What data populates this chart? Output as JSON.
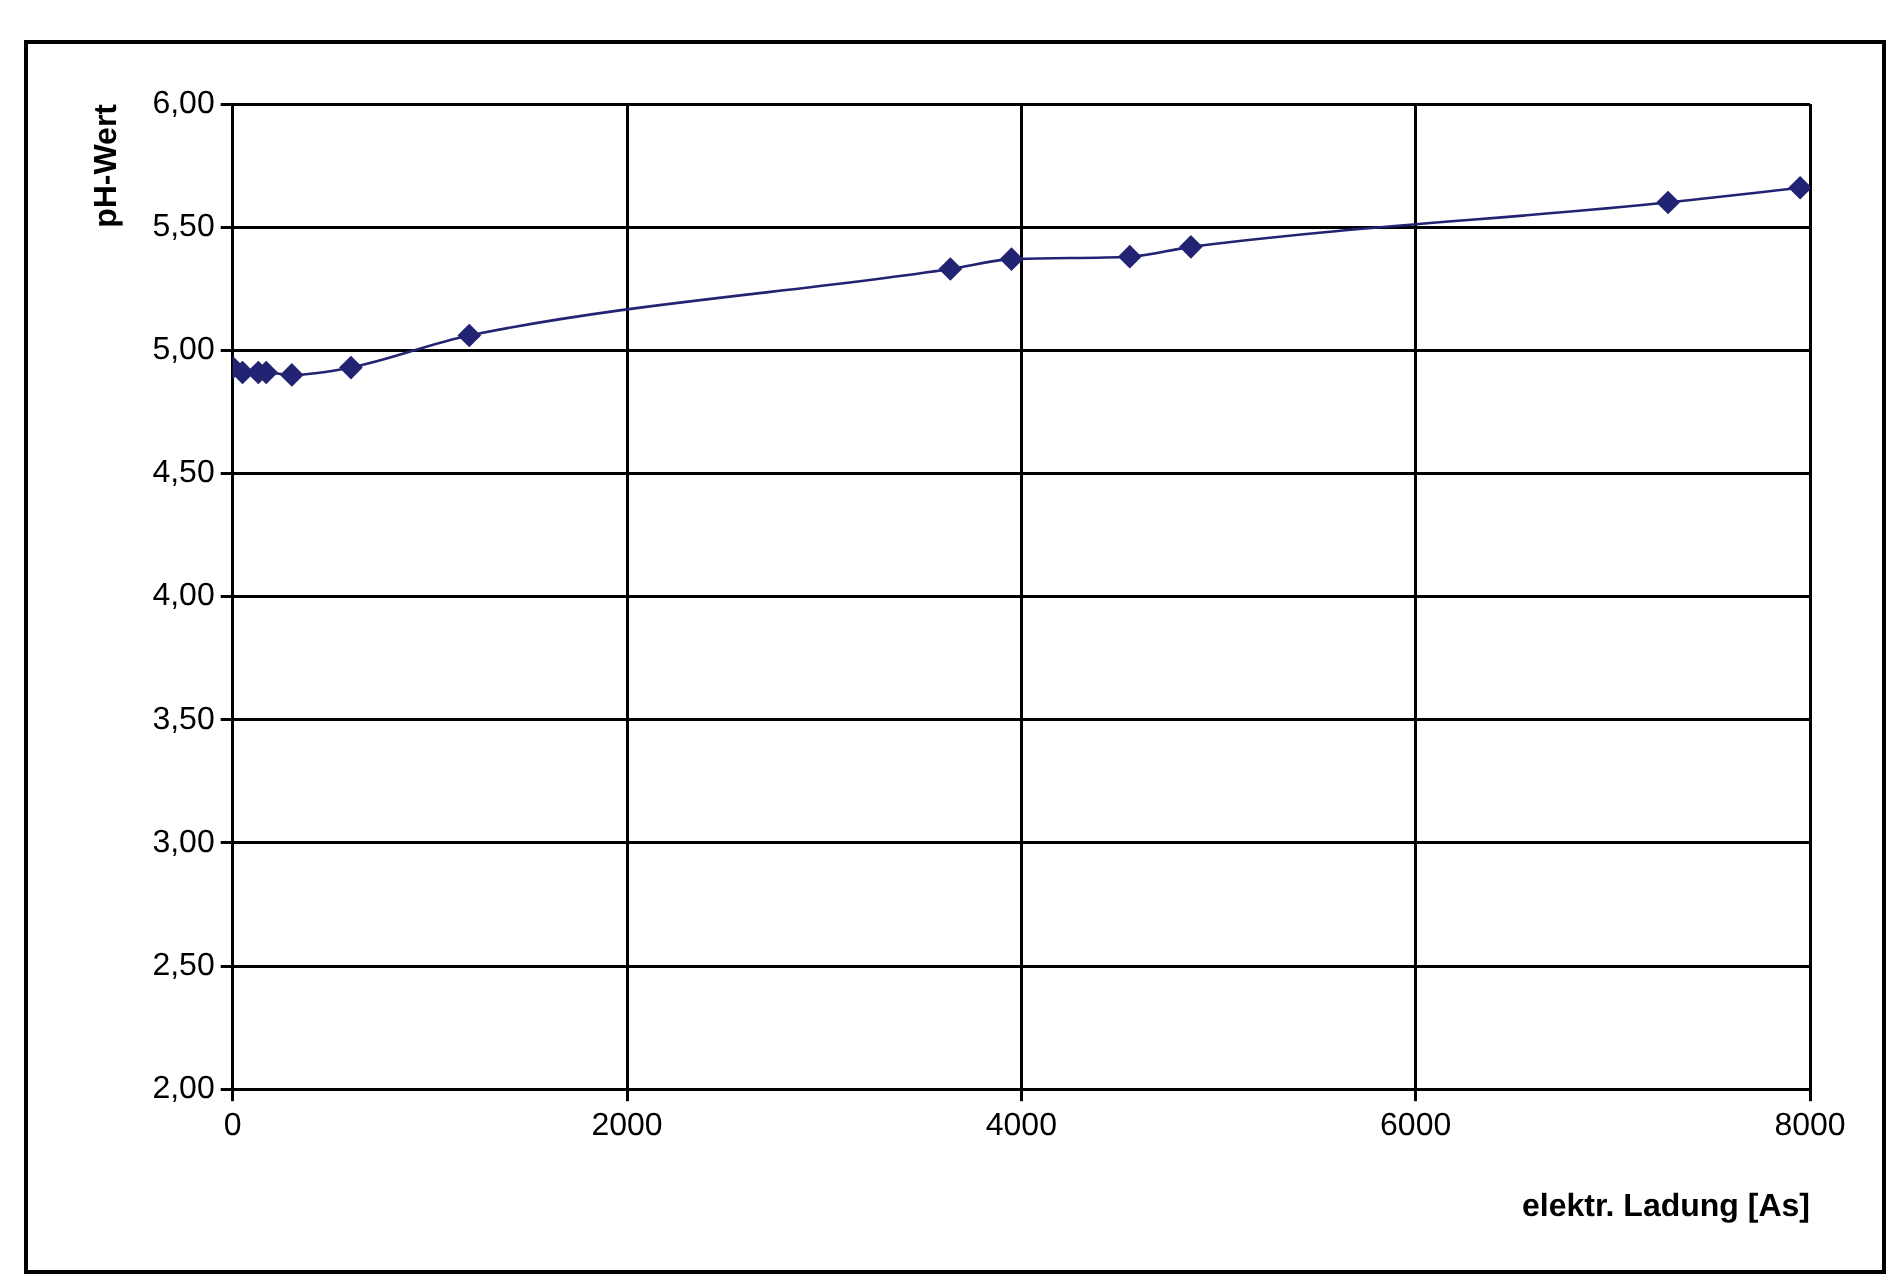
{
  "chart_data": {
    "type": "line",
    "xlabel": "elektr. Ladung [As]",
    "ylabel": "pH-Wert",
    "x": [
      0,
      50,
      130,
      170,
      300,
      600,
      1200,
      3640,
      3950,
      4550,
      4860,
      7280,
      7950
    ],
    "series": [
      {
        "color": "#232373",
        "values": [
          4.93,
          4.91,
          4.91,
          4.91,
          4.9,
          4.93,
          5.06,
          5.33,
          5.37,
          5.38,
          5.42,
          5.6,
          5.66
        ]
      }
    ],
    "xlim": [
      0,
      8000
    ],
    "xticks": [
      0,
      2000,
      4000,
      6000,
      8000
    ],
    "ylim": [
      2,
      6
    ],
    "yticks": [
      {
        "value": 2,
        "label": "2,00"
      },
      {
        "value": 2.5,
        "label": "2,50"
      },
      {
        "value": 3,
        "label": "3,00"
      },
      {
        "value": 3.5,
        "label": "3,50"
      },
      {
        "value": 4,
        "label": "4,00"
      },
      {
        "value": 4.5,
        "label": "4,50"
      },
      {
        "value": 5,
        "label": "5,00"
      },
      {
        "value": 5.5,
        "label": "5,50"
      },
      {
        "value": 6,
        "label": "6,00"
      }
    ],
    "grid": true,
    "legend": false,
    "marker": "diamond",
    "line_style": "solid"
  }
}
